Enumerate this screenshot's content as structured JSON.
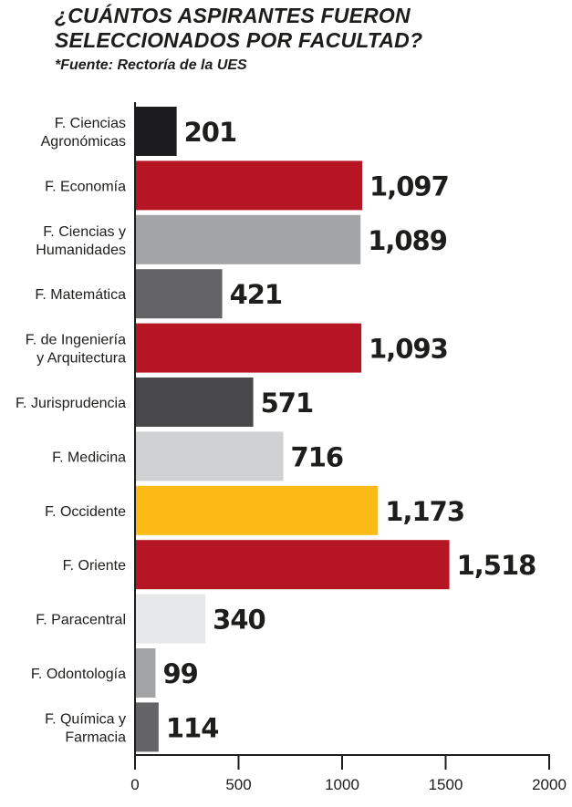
{
  "header": {
    "title_line1": "¿CUÁNTOS ASPIRANTES FUERON",
    "title_line2": "SELECCIONADOS POR FACULTAD?",
    "source": "*Fuente: Rectoría de la UES"
  },
  "chart_data": {
    "type": "bar",
    "orientation": "horizontal",
    "title": "¿CUÁNTOS ASPIRANTES FUERON SELECCIONADOS POR FACULTAD?",
    "subtitle": "*Fuente: Rectoría de la UES",
    "xlabel": "",
    "ylabel": "",
    "xlim": [
      0,
      2000
    ],
    "xticks": [
      0,
      500,
      1000,
      1500,
      2000
    ],
    "grid": false,
    "legend": "none",
    "categories": [
      [
        "F. Ciencias",
        "Agronómicas"
      ],
      [
        "F. Economía"
      ],
      [
        "F. Ciencias y",
        "Humanidades"
      ],
      [
        "F. Matemática"
      ],
      [
        "F. de Ingeniería",
        "y Arquitectura"
      ],
      [
        "F. Jurisprudencia"
      ],
      [
        "F. Medicina"
      ],
      [
        "F. Occidente"
      ],
      [
        "F. Oriente"
      ],
      [
        "F. Paracentral"
      ],
      [
        "F. Odontología"
      ],
      [
        "F. Química y",
        "Farmacia"
      ]
    ],
    "values": [
      201,
      1097,
      1089,
      421,
      1093,
      571,
      716,
      1173,
      1518,
      340,
      99,
      114
    ],
    "value_labels": [
      "201",
      "1,097",
      "1,089",
      "421",
      "1,093",
      "571",
      "716",
      "1,173",
      "1,518",
      "340",
      "99",
      "114"
    ],
    "colors": [
      "#1b1a1d",
      "#b61623",
      "#a3a4a6",
      "#646466",
      "#b61623",
      "#48484a",
      "#d0d1d3",
      "#fbba16",
      "#b61623",
      "#e6e7e8",
      "#a3a4a6",
      "#646466"
    ]
  }
}
